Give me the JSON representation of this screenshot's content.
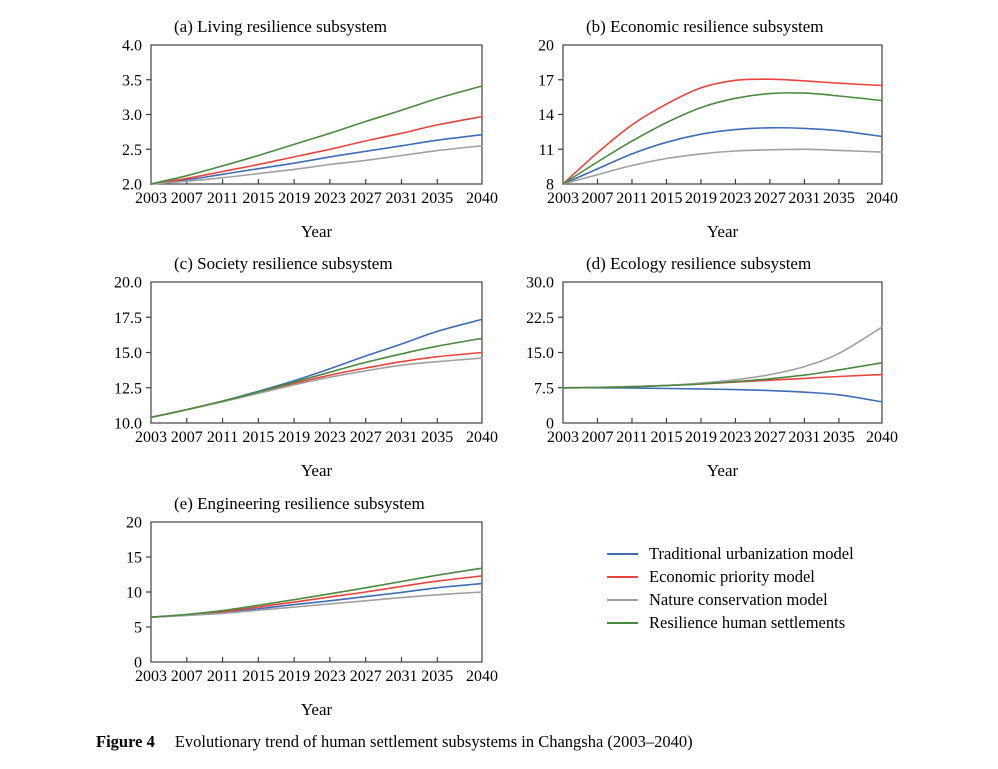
{
  "legend": {
    "items": [
      {
        "label": "Traditional urbanization model",
        "color": "#3E6DB5"
      },
      {
        "label": "Economic priority model",
        "color": "#E8433C"
      },
      {
        "label": "Nature conservation model",
        "color": "#A0A0A0"
      },
      {
        "label": "Resilience human settlements",
        "color": "#4A8A3F"
      }
    ]
  },
  "caption": {
    "label": "Figure 4",
    "text": "Evolutionary trend of human settlement subsystems in Changsha (2003–2040)"
  },
  "chart_data": [
    {
      "type": "line",
      "title": "(a) Living resilience subsystem",
      "xlabel": "Year",
      "ylim": [
        2.0,
        4.0
      ],
      "yticks": [
        "2.0",
        "2.5",
        "3.0",
        "3.5",
        "4.0"
      ],
      "x": [
        2003,
        2007,
        2011,
        2015,
        2019,
        2023,
        2027,
        2031,
        2035,
        2040
      ],
      "xticks": [
        "2003",
        "2007",
        "2011",
        "2015",
        "2019",
        "2023",
        "2027",
        "2031",
        "2035",
        "2040"
      ],
      "series": [
        {
          "name": "Traditional urbanization model",
          "values": [
            2.0,
            2.06,
            2.14,
            2.22,
            2.3,
            2.39,
            2.47,
            2.55,
            2.63,
            2.71
          ]
        },
        {
          "name": "Economic priority model",
          "values": [
            2.0,
            2.08,
            2.18,
            2.28,
            2.39,
            2.5,
            2.62,
            2.73,
            2.85,
            2.97
          ]
        },
        {
          "name": "Nature conservation model",
          "values": [
            2.0,
            2.04,
            2.09,
            2.15,
            2.21,
            2.28,
            2.34,
            2.41,
            2.48,
            2.55
          ]
        },
        {
          "name": "Resilience human settlements",
          "values": [
            2.0,
            2.12,
            2.26,
            2.41,
            2.57,
            2.73,
            2.9,
            3.06,
            3.23,
            3.41
          ]
        }
      ]
    },
    {
      "type": "line",
      "title": "(b) Economic resilience subsystem",
      "xlabel": "Year",
      "ylim": [
        8,
        20
      ],
      "yticks": [
        "8",
        "11",
        "14",
        "17",
        "20"
      ],
      "x": [
        2003,
        2007,
        2011,
        2015,
        2019,
        2023,
        2027,
        2031,
        2035,
        2040
      ],
      "xticks": [
        "2003",
        "2007",
        "2011",
        "2015",
        "2019",
        "2023",
        "2027",
        "2031",
        "2035",
        "2040"
      ],
      "series": [
        {
          "name": "Traditional urbanization model",
          "values": [
            8.0,
            9.3,
            10.6,
            11.6,
            12.3,
            12.7,
            12.85,
            12.8,
            12.6,
            12.1
          ]
        },
        {
          "name": "Economic priority model",
          "values": [
            8.0,
            10.7,
            13.1,
            14.9,
            16.3,
            16.95,
            17.05,
            16.9,
            16.7,
            16.5
          ]
        },
        {
          "name": "Nature conservation model",
          "values": [
            8.0,
            8.8,
            9.6,
            10.2,
            10.6,
            10.85,
            10.95,
            11.0,
            10.9,
            10.75
          ]
        },
        {
          "name": "Resilience human settlements",
          "values": [
            8.0,
            9.9,
            11.7,
            13.3,
            14.6,
            15.4,
            15.8,
            15.85,
            15.6,
            15.2
          ]
        }
      ]
    },
    {
      "type": "line",
      "title": "(c) Society resilience subsystem",
      "xlabel": "Year",
      "ylim": [
        10.0,
        20.0
      ],
      "yticks": [
        "10.0",
        "12.5",
        "15.0",
        "17.5",
        "20.0"
      ],
      "x": [
        2003,
        2007,
        2011,
        2015,
        2019,
        2023,
        2027,
        2031,
        2035,
        2040
      ],
      "xticks": [
        "2003",
        "2007",
        "2011",
        "2015",
        "2019",
        "2023",
        "2027",
        "2031",
        "2035",
        "2040"
      ],
      "series": [
        {
          "name": "Traditional urbanization model",
          "values": [
            10.4,
            10.95,
            11.55,
            12.25,
            13.0,
            13.85,
            14.75,
            15.6,
            16.5,
            17.35
          ]
        },
        {
          "name": "Economic priority model",
          "values": [
            10.4,
            10.95,
            11.55,
            12.15,
            12.8,
            13.4,
            13.9,
            14.35,
            14.7,
            15.0
          ]
        },
        {
          "name": "Nature conservation model",
          "values": [
            10.4,
            10.95,
            11.5,
            12.1,
            12.7,
            13.25,
            13.7,
            14.1,
            14.35,
            14.6
          ]
        },
        {
          "name": "Resilience human settlements",
          "values": [
            10.4,
            10.95,
            11.55,
            12.2,
            12.9,
            13.6,
            14.3,
            14.9,
            15.45,
            16.0
          ]
        }
      ]
    },
    {
      "type": "line",
      "title": "(d) Ecology resilience subsystem",
      "xlabel": "Year",
      "ylim": [
        0,
        30.0
      ],
      "yticks": [
        "0",
        "7.5",
        "15.0",
        "22.5",
        "30.0"
      ],
      "x": [
        2003,
        2007,
        2011,
        2015,
        2019,
        2023,
        2027,
        2031,
        2035,
        2040
      ],
      "xticks": [
        "2003",
        "2007",
        "2011",
        "2015",
        "2019",
        "2023",
        "2027",
        "2031",
        "2035",
        "2040"
      ],
      "series": [
        {
          "name": "Traditional urbanization model",
          "values": [
            7.5,
            7.5,
            7.45,
            7.35,
            7.25,
            7.1,
            6.9,
            6.55,
            6.0,
            4.5
          ]
        },
        {
          "name": "Economic priority model",
          "values": [
            7.5,
            7.55,
            7.75,
            8.0,
            8.3,
            8.7,
            9.1,
            9.5,
            9.9,
            10.3
          ]
        },
        {
          "name": "Nature conservation model",
          "values": [
            7.5,
            7.6,
            7.75,
            8.0,
            8.5,
            9.2,
            10.3,
            12.0,
            14.8,
            20.4
          ]
        },
        {
          "name": "Resilience human settlements",
          "values": [
            7.5,
            7.55,
            7.7,
            7.95,
            8.3,
            8.8,
            9.4,
            10.2,
            11.3,
            12.8
          ]
        }
      ]
    },
    {
      "type": "line",
      "title": "(e) Engineering resilience subsystem",
      "xlabel": "Year",
      "ylim": [
        0,
        20
      ],
      "yticks": [
        "0",
        "5",
        "10",
        "15",
        "20"
      ],
      "x": [
        2003,
        2007,
        2011,
        2015,
        2019,
        2023,
        2027,
        2031,
        2035,
        2040
      ],
      "xticks": [
        "2003",
        "2007",
        "2011",
        "2015",
        "2019",
        "2023",
        "2027",
        "2031",
        "2035",
        "2040"
      ],
      "series": [
        {
          "name": "Traditional urbanization model",
          "values": [
            6.4,
            6.7,
            7.05,
            7.6,
            8.2,
            8.75,
            9.35,
            9.95,
            10.6,
            11.2
          ]
        },
        {
          "name": "Economic priority model",
          "values": [
            6.4,
            6.75,
            7.2,
            7.85,
            8.55,
            9.3,
            10.0,
            10.8,
            11.55,
            12.3
          ]
        },
        {
          "name": "Nature conservation model",
          "values": [
            6.4,
            6.65,
            6.95,
            7.4,
            7.85,
            8.3,
            8.75,
            9.2,
            9.6,
            10.0
          ]
        },
        {
          "name": "Resilience human settlements",
          "values": [
            6.4,
            6.8,
            7.35,
            8.1,
            8.9,
            9.75,
            10.6,
            11.5,
            12.4,
            13.4
          ]
        }
      ]
    }
  ]
}
